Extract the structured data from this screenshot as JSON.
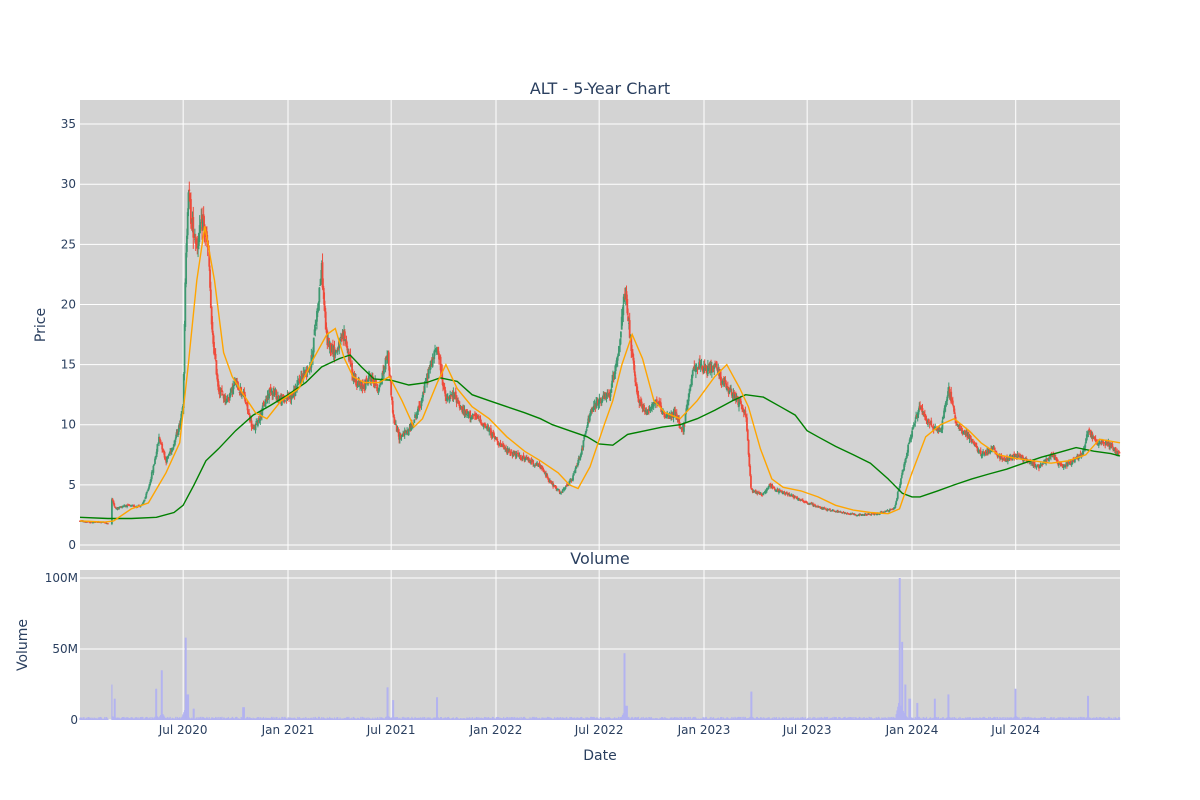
{
  "chart_data": [
    {
      "type": "candlestick",
      "title": "ALT - 5-Year Chart",
      "ylabel": "Price",
      "ylim": [
        0,
        37
      ],
      "yticks": [
        0,
        5,
        10,
        15,
        20,
        25,
        30,
        35
      ],
      "grid": true,
      "up_color": "#3d9970",
      "down_color": "#ef4b3b",
      "ma_short_color": "#ffa500",
      "ma_long_color": "#008000",
      "price_path": [
        [
          "2020-01-02",
          2.0
        ],
        [
          "2020-01-20",
          1.9
        ],
        [
          "2020-02-10",
          1.9
        ],
        [
          "2020-02-20",
          1.8
        ],
        [
          "2020-02-26",
          3.9
        ],
        [
          "2020-03-05",
          3.0
        ],
        [
          "2020-03-20",
          3.3
        ],
        [
          "2020-04-05",
          3.2
        ],
        [
          "2020-04-20",
          3.3
        ],
        [
          "2020-04-30",
          4.5
        ],
        [
          "2020-05-10",
          6.5
        ],
        [
          "2020-05-20",
          9.0
        ],
        [
          "2020-06-01",
          7.0
        ],
        [
          "2020-06-15",
          8.5
        ],
        [
          "2020-06-25",
          10.0
        ],
        [
          "2020-07-01",
          12.0
        ],
        [
          "2020-07-05",
          22.0
        ],
        [
          "2020-07-10",
          30.0
        ],
        [
          "2020-07-15",
          27.0
        ],
        [
          "2020-07-25",
          25.0
        ],
        [
          "2020-08-05",
          27.0
        ],
        [
          "2020-08-15",
          24.0
        ],
        [
          "2020-08-20",
          18.0
        ],
        [
          "2020-09-01",
          13.0
        ],
        [
          "2020-09-15",
          12.0
        ],
        [
          "2020-10-01",
          13.5
        ],
        [
          "2020-10-15",
          12.5
        ],
        [
          "2020-11-01",
          9.5
        ],
        [
          "2020-11-15",
          11.0
        ],
        [
          "2020-12-01",
          13.0
        ],
        [
          "2020-12-20",
          12.0
        ],
        [
          "2021-01-10",
          12.5
        ],
        [
          "2021-01-25",
          14.0
        ],
        [
          "2021-02-10",
          15.0
        ],
        [
          "2021-02-20",
          19.0
        ],
        [
          "2021-03-01",
          23.0
        ],
        [
          "2021-03-10",
          17.0
        ],
        [
          "2021-03-25",
          16.0
        ],
        [
          "2021-04-10",
          17.5
        ],
        [
          "2021-04-25",
          14.0
        ],
        [
          "2021-05-10",
          13.0
        ],
        [
          "2021-05-25",
          14.0
        ],
        [
          "2021-06-10",
          13.0
        ],
        [
          "2021-06-25",
          16.0
        ],
        [
          "2021-07-05",
          10.5
        ],
        [
          "2021-07-15",
          9.0
        ],
        [
          "2021-08-01",
          9.5
        ],
        [
          "2021-08-20",
          11.5
        ],
        [
          "2021-09-05",
          14.5
        ],
        [
          "2021-09-20",
          16.5
        ],
        [
          "2021-10-05",
          12.0
        ],
        [
          "2021-10-20",
          12.5
        ],
        [
          "2021-11-05",
          11.0
        ],
        [
          "2021-12-01",
          10.5
        ],
        [
          "2021-12-20",
          9.5
        ],
        [
          "2022-01-15",
          8.0
        ],
        [
          "2022-02-05",
          7.5
        ],
        [
          "2022-03-01",
          7.0
        ],
        [
          "2022-03-20",
          6.5
        ],
        [
          "2022-04-10",
          5.0
        ],
        [
          "2022-04-25",
          4.3
        ],
        [
          "2022-05-15",
          5.5
        ],
        [
          "2022-06-01",
          8.0
        ],
        [
          "2022-06-15",
          11.0
        ],
        [
          "2022-07-01",
          12.0
        ],
        [
          "2022-07-20",
          12.5
        ],
        [
          "2022-08-05",
          16.5
        ],
        [
          "2022-08-15",
          21.0
        ],
        [
          "2022-08-25",
          17.0
        ],
        [
          "2022-09-05",
          12.5
        ],
        [
          "2022-09-20",
          11.0
        ],
        [
          "2022-10-10",
          12.0
        ],
        [
          "2022-10-25",
          10.5
        ],
        [
          "2022-11-10",
          11.0
        ],
        [
          "2022-11-25",
          9.5
        ],
        [
          "2022-12-15",
          15.0
        ],
        [
          "2023-01-05",
          14.5
        ],
        [
          "2023-01-20",
          15.0
        ],
        [
          "2023-02-10",
          13.0
        ],
        [
          "2023-03-01",
          12.0
        ],
        [
          "2023-03-15",
          11.0
        ],
        [
          "2023-03-25",
          4.5
        ],
        [
          "2023-04-15",
          4.2
        ],
        [
          "2023-04-25",
          5.0
        ],
        [
          "2023-05-10",
          4.5
        ],
        [
          "2023-06-01",
          4.2
        ],
        [
          "2023-07-01",
          3.5
        ],
        [
          "2023-08-01",
          3.0
        ],
        [
          "2023-09-01",
          2.7
        ],
        [
          "2023-10-01",
          2.5
        ],
        [
          "2023-11-01",
          2.6
        ],
        [
          "2023-12-01",
          3.0
        ],
        [
          "2023-12-15",
          6.0
        ],
        [
          "2024-01-01",
          9.5
        ],
        [
          "2024-01-15",
          11.5
        ],
        [
          "2024-02-01",
          10.0
        ],
        [
          "2024-02-20",
          9.5
        ],
        [
          "2024-03-05",
          13.0
        ],
        [
          "2024-03-20",
          10.0
        ],
        [
          "2024-04-10",
          9.0
        ],
        [
          "2024-05-01",
          7.5
        ],
        [
          "2024-05-20",
          8.0
        ],
        [
          "2024-06-10",
          7.0
        ],
        [
          "2024-07-01",
          7.5
        ],
        [
          "2024-07-20",
          7.0
        ],
        [
          "2024-08-10",
          6.5
        ],
        [
          "2024-09-01",
          7.5
        ],
        [
          "2024-09-20",
          6.5
        ],
        [
          "2024-10-10",
          7.0
        ],
        [
          "2024-10-25",
          7.5
        ],
        [
          "2024-11-05",
          9.5
        ],
        [
          "2024-11-20",
          8.5
        ],
        [
          "2024-12-10",
          8.5
        ],
        [
          "2024-12-31",
          7.5
        ]
      ],
      "ma_short": [
        [
          "2020-01-02",
          2.0
        ],
        [
          "2020-02-15",
          1.9
        ],
        [
          "2020-03-01",
          2.0
        ],
        [
          "2020-04-01",
          3.0
        ],
        [
          "2020-05-01",
          3.5
        ],
        [
          "2020-06-01",
          6.0
        ],
        [
          "2020-06-25",
          8.5
        ],
        [
          "2020-07-10",
          15.0
        ],
        [
          "2020-07-25",
          22.0
        ],
        [
          "2020-08-08",
          26.5
        ],
        [
          "2020-08-25",
          22.0
        ],
        [
          "2020-09-10",
          16.0
        ],
        [
          "2020-09-25",
          14.0
        ],
        [
          "2020-10-15",
          12.5
        ],
        [
          "2020-11-05",
          11.0
        ],
        [
          "2020-11-25",
          10.5
        ],
        [
          "2020-12-20",
          12.0
        ],
        [
          "2021-01-20",
          13.0
        ],
        [
          "2021-02-15",
          15.5
        ],
        [
          "2021-03-10",
          17.5
        ],
        [
          "2021-03-25",
          18.0
        ],
        [
          "2021-04-10",
          15.5
        ],
        [
          "2021-04-25",
          14.0
        ],
        [
          "2021-05-15",
          13.5
        ],
        [
          "2021-06-10",
          13.5
        ],
        [
          "2021-06-28",
          14.0
        ],
        [
          "2021-07-20",
          12.0
        ],
        [
          "2021-08-10",
          9.8
        ],
        [
          "2021-08-25",
          10.5
        ],
        [
          "2021-09-20",
          13.5
        ],
        [
          "2021-10-05",
          15.0
        ],
        [
          "2021-10-25",
          13.0
        ],
        [
          "2021-11-20",
          11.5
        ],
        [
          "2021-12-20",
          10.5
        ],
        [
          "2022-01-20",
          9.0
        ],
        [
          "2022-02-20",
          7.8
        ],
        [
          "2022-03-20",
          7.0
        ],
        [
          "2022-04-20",
          6.0
        ],
        [
          "2022-05-10",
          5.0
        ],
        [
          "2022-05-25",
          4.7
        ],
        [
          "2022-06-15",
          6.5
        ],
        [
          "2022-07-10",
          10.0
        ],
        [
          "2022-07-25",
          12.0
        ],
        [
          "2022-08-10",
          15.0
        ],
        [
          "2022-08-28",
          17.5
        ],
        [
          "2022-09-15",
          15.5
        ],
        [
          "2022-10-05",
          12.0
        ],
        [
          "2022-10-25",
          11.0
        ],
        [
          "2022-11-20",
          10.5
        ],
        [
          "2022-12-20",
          12.0
        ],
        [
          "2023-01-20",
          14.0
        ],
        [
          "2023-02-10",
          15.0
        ],
        [
          "2023-03-05",
          13.0
        ],
        [
          "2023-03-20",
          11.5
        ],
        [
          "2023-04-10",
          8.0
        ],
        [
          "2023-04-30",
          5.5
        ],
        [
          "2023-05-20",
          4.8
        ],
        [
          "2023-06-20",
          4.5
        ],
        [
          "2023-07-20",
          4.0
        ],
        [
          "2023-08-20",
          3.3
        ],
        [
          "2023-09-20",
          2.9
        ],
        [
          "2023-10-20",
          2.7
        ],
        [
          "2023-11-20",
          2.6
        ],
        [
          "2023-12-10",
          3.0
        ],
        [
          "2024-01-01",
          6.0
        ],
        [
          "2024-01-25",
          9.0
        ],
        [
          "2024-02-20",
          10.0
        ],
        [
          "2024-03-15",
          10.5
        ],
        [
          "2024-04-10",
          9.5
        ],
        [
          "2024-05-01",
          8.5
        ],
        [
          "2024-06-01",
          7.5
        ],
        [
          "2024-07-01",
          7.2
        ],
        [
          "2024-08-01",
          7.0
        ],
        [
          "2024-09-01",
          6.8
        ],
        [
          "2024-10-01",
          7.0
        ],
        [
          "2024-11-01",
          7.5
        ],
        [
          "2024-11-25",
          8.8
        ],
        [
          "2024-12-31",
          8.5
        ]
      ],
      "ma_long": [
        [
          "2020-01-02",
          2.3
        ],
        [
          "2020-02-20",
          2.2
        ],
        [
          "2020-04-01",
          2.2
        ],
        [
          "2020-05-15",
          2.3
        ],
        [
          "2020-06-15",
          2.7
        ],
        [
          "2020-07-01",
          3.3
        ],
        [
          "2020-07-20",
          5.0
        ],
        [
          "2020-08-10",
          7.0
        ],
        [
          "2020-09-01",
          8.0
        ],
        [
          "2020-10-01",
          9.5
        ],
        [
          "2020-11-01",
          10.8
        ],
        [
          "2020-12-01",
          11.6
        ],
        [
          "2021-01-01",
          12.5
        ],
        [
          "2021-02-01",
          13.5
        ],
        [
          "2021-03-01",
          14.8
        ],
        [
          "2021-04-01",
          15.5
        ],
        [
          "2021-04-20",
          15.8
        ],
        [
          "2021-05-10",
          14.8
        ],
        [
          "2021-06-01",
          13.8
        ],
        [
          "2021-07-01",
          13.7
        ],
        [
          "2021-08-01",
          13.3
        ],
        [
          "2021-09-01",
          13.5
        ],
        [
          "2021-09-25",
          13.9
        ],
        [
          "2021-10-25",
          13.6
        ],
        [
          "2021-11-20",
          12.5
        ],
        [
          "2021-12-20",
          12.0
        ],
        [
          "2022-01-20",
          11.5
        ],
        [
          "2022-02-20",
          11.0
        ],
        [
          "2022-03-20",
          10.5
        ],
        [
          "2022-04-10",
          10.0
        ],
        [
          "2022-05-10",
          9.5
        ],
        [
          "2022-06-10",
          9.0
        ],
        [
          "2022-07-01",
          8.4
        ],
        [
          "2022-07-25",
          8.3
        ],
        [
          "2022-08-20",
          9.2
        ],
        [
          "2022-09-20",
          9.5
        ],
        [
          "2022-10-20",
          9.8
        ],
        [
          "2022-11-20",
          10.0
        ],
        [
          "2022-12-20",
          10.5
        ],
        [
          "2023-01-20",
          11.2
        ],
        [
          "2023-02-20",
          12.0
        ],
        [
          "2023-03-15",
          12.5
        ],
        [
          "2023-04-15",
          12.3
        ],
        [
          "2023-05-15",
          11.5
        ],
        [
          "2023-06-10",
          10.8
        ],
        [
          "2023-07-01",
          9.5
        ],
        [
          "2023-07-20",
          9.0
        ],
        [
          "2023-08-20",
          8.2
        ],
        [
          "2023-09-20",
          7.5
        ],
        [
          "2023-10-20",
          6.8
        ],
        [
          "2023-11-20",
          5.5
        ],
        [
          "2023-12-15",
          4.3
        ],
        [
          "2024-01-01",
          4.0
        ],
        [
          "2024-01-15",
          4.0
        ],
        [
          "2024-02-15",
          4.5
        ],
        [
          "2024-03-15",
          5.0
        ],
        [
          "2024-04-15",
          5.5
        ],
        [
          "2024-05-15",
          5.9
        ],
        [
          "2024-06-15",
          6.3
        ],
        [
          "2024-07-15",
          6.8
        ],
        [
          "2024-08-15",
          7.3
        ],
        [
          "2024-09-15",
          7.7
        ],
        [
          "2024-10-15",
          8.1
        ],
        [
          "2024-11-15",
          7.8
        ],
        [
          "2024-12-15",
          7.6
        ],
        [
          "2024-12-31",
          7.4
        ]
      ]
    },
    {
      "type": "bar",
      "title": "Volume",
      "xlabel": "Date",
      "ylabel": "Volume",
      "ylim": [
        0,
        100000000
      ],
      "yticks": [
        0,
        50000000,
        100000000
      ],
      "ytick_labels": [
        "0",
        "50M",
        "100M"
      ],
      "xlim": [
        "2020-01-02",
        "2024-12-31"
      ],
      "xticks": [
        "2020-07-01",
        "2021-01-01",
        "2021-07-01",
        "2022-01-01",
        "2022-07-01",
        "2023-01-01",
        "2023-07-01",
        "2024-01-01",
        "2024-07-01"
      ],
      "xtick_labels": [
        "Jul 2020",
        "Jan 2021",
        "Jul 2021",
        "Jan 2022",
        "Jul 2022",
        "Jan 2023",
        "Jul 2023",
        "Jan 2024",
        "Jul 2024"
      ],
      "bar_color": "#b3b3f0",
      "baseline": 1500000,
      "spikes": [
        [
          "2020-02-26",
          25000000
        ],
        [
          "2020-03-03",
          15000000
        ],
        [
          "2020-05-15",
          22000000
        ],
        [
          "2020-05-25",
          35000000
        ],
        [
          "2020-07-05",
          58000000
        ],
        [
          "2020-07-09",
          18000000
        ],
        [
          "2020-07-20",
          8000000
        ],
        [
          "2020-10-15",
          9000000
        ],
        [
          "2021-06-25",
          23000000
        ],
        [
          "2021-07-05",
          14000000
        ],
        [
          "2021-09-20",
          16000000
        ],
        [
          "2022-08-15",
          47000000
        ],
        [
          "2022-08-18",
          10000000
        ],
        [
          "2023-03-25",
          20000000
        ],
        [
          "2023-12-10",
          100000000
        ],
        [
          "2023-12-15",
          55000000
        ],
        [
          "2023-12-20",
          25000000
        ],
        [
          "2023-12-28",
          15000000
        ],
        [
          "2024-01-10",
          12000000
        ],
        [
          "2024-02-10",
          15000000
        ],
        [
          "2024-03-05",
          18000000
        ],
        [
          "2024-07-01",
          22000000
        ],
        [
          "2024-11-05",
          17000000
        ]
      ]
    }
  ]
}
